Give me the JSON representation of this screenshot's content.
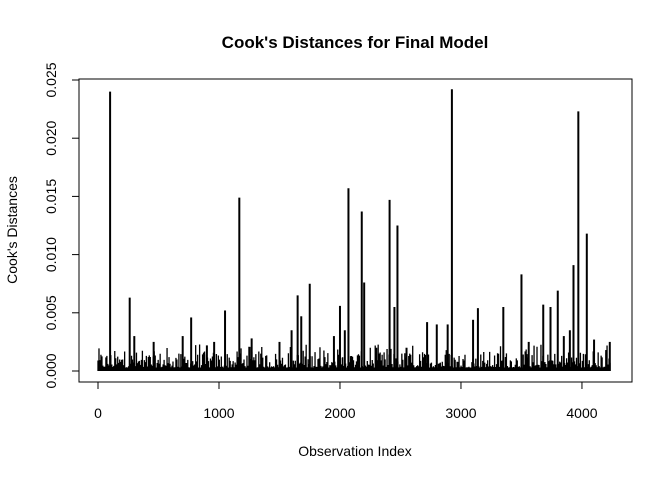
{
  "chart_data": {
    "type": "bar",
    "title": "Cook's Distances for Final Model",
    "xlabel": "Observation Index",
    "ylabel": "Cook's Distances",
    "xlim": [
      0,
      4240
    ],
    "ylim": [
      0,
      0.025
    ],
    "x_ticks": [
      0,
      1000,
      2000,
      3000,
      4000
    ],
    "x_tick_labels": [
      "0",
      "1000",
      "2000",
      "3000",
      "4000"
    ],
    "y_ticks": [
      0,
      0.005,
      0.01,
      0.015,
      0.02,
      0.025
    ],
    "y_tick_labels": [
      "0.000",
      "0.005",
      "0.010",
      "0.015",
      "0.020",
      "0.025"
    ],
    "grid": false,
    "legend": "none",
    "n_observations": 4240,
    "spikes": [
      {
        "x": 100,
        "y": 0.024
      },
      {
        "x": 262,
        "y": 0.0063
      },
      {
        "x": 300,
        "y": 0.003
      },
      {
        "x": 460,
        "y": 0.0025
      },
      {
        "x": 700,
        "y": 0.003
      },
      {
        "x": 770,
        "y": 0.0046
      },
      {
        "x": 900,
        "y": 0.0022
      },
      {
        "x": 960,
        "y": 0.0025
      },
      {
        "x": 1050,
        "y": 0.0052
      },
      {
        "x": 1168,
        "y": 0.0149
      },
      {
        "x": 1270,
        "y": 0.0028
      },
      {
        "x": 1500,
        "y": 0.0025
      },
      {
        "x": 1600,
        "y": 0.0035
      },
      {
        "x": 1650,
        "y": 0.0065
      },
      {
        "x": 1680,
        "y": 0.0047
      },
      {
        "x": 1750,
        "y": 0.0075
      },
      {
        "x": 1950,
        "y": 0.003
      },
      {
        "x": 2000,
        "y": 0.0056
      },
      {
        "x": 2040,
        "y": 0.0035
      },
      {
        "x": 2070,
        "y": 0.0157
      },
      {
        "x": 2180,
        "y": 0.0137
      },
      {
        "x": 2200,
        "y": 0.0076
      },
      {
        "x": 2300,
        "y": 0.002
      },
      {
        "x": 2410,
        "y": 0.0147
      },
      {
        "x": 2450,
        "y": 0.0055
      },
      {
        "x": 2475,
        "y": 0.0125
      },
      {
        "x": 2550,
        "y": 0.002
      },
      {
        "x": 2720,
        "y": 0.0042
      },
      {
        "x": 2800,
        "y": 0.004
      },
      {
        "x": 2890,
        "y": 0.004
      },
      {
        "x": 2925,
        "y": 0.0242
      },
      {
        "x": 3100,
        "y": 0.0044
      },
      {
        "x": 3140,
        "y": 0.0054
      },
      {
        "x": 3350,
        "y": 0.0055
      },
      {
        "x": 3500,
        "y": 0.0083
      },
      {
        "x": 3560,
        "y": 0.0025
      },
      {
        "x": 3680,
        "y": 0.0057
      },
      {
        "x": 3740,
        "y": 0.0055
      },
      {
        "x": 3800,
        "y": 0.0069
      },
      {
        "x": 3850,
        "y": 0.003
      },
      {
        "x": 3900,
        "y": 0.0035
      },
      {
        "x": 3930,
        "y": 0.0091
      },
      {
        "x": 3970,
        "y": 0.0223
      },
      {
        "x": 4040,
        "y": 0.0118
      },
      {
        "x": 4100,
        "y": 0.0027
      },
      {
        "x": 4200,
        "y": 0.0018
      },
      {
        "x": 4230,
        "y": 0.0025
      }
    ],
    "baseline_level": 0.001
  },
  "style": {
    "line_color": "#000000",
    "background": "#ffffff"
  }
}
